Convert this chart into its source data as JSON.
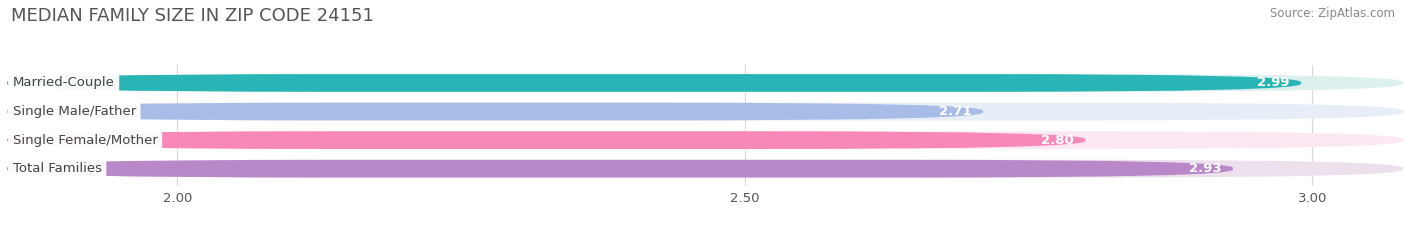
{
  "title": "MEDIAN FAMILY SIZE IN ZIP CODE 24151",
  "source": "Source: ZipAtlas.com",
  "categories": [
    "Married-Couple",
    "Single Male/Father",
    "Single Female/Mother",
    "Total Families"
  ],
  "values": [
    2.99,
    2.71,
    2.8,
    2.93
  ],
  "bar_colors": [
    "#29b5b5",
    "#a8bce8",
    "#f888b8",
    "#b888c8"
  ],
  "bar_bg_colors": [
    "#ddf0f0",
    "#e8eef8",
    "#fce8f4",
    "#ece0ec"
  ],
  "xlim": [
    1.85,
    3.08
  ],
  "xticks": [
    2.0,
    2.5,
    3.0
  ],
  "xtick_labels": [
    "2.00",
    "2.50",
    "3.00"
  ],
  "figsize": [
    14.06,
    2.33
  ],
  "dpi": 100,
  "title_fontsize": 13,
  "bar_height": 0.62,
  "label_fontsize": 9.5,
  "value_fontsize": 9.5
}
